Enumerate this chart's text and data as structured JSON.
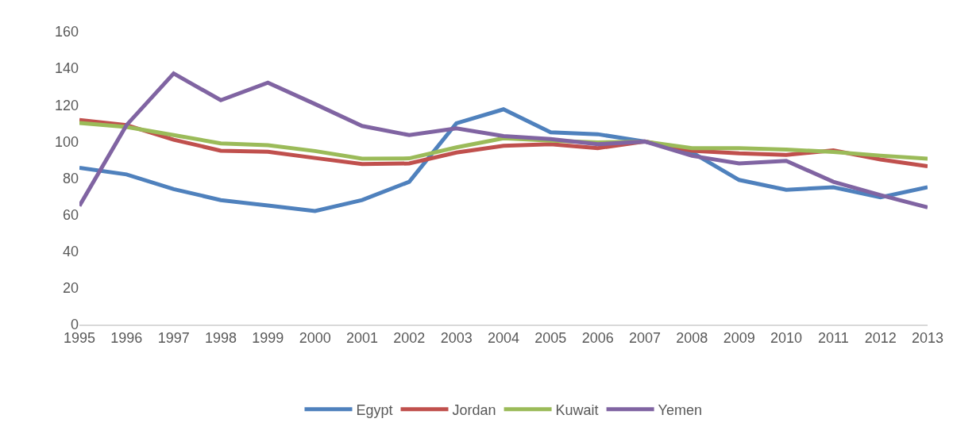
{
  "chart_data": {
    "type": "line",
    "categories": [
      "1995",
      "1996",
      "1997",
      "1998",
      "1999",
      "2000",
      "2001",
      "2002",
      "2003",
      "2004",
      "2005",
      "2006",
      "2007",
      "2008",
      "2009",
      "2010",
      "2011",
      "2012",
      "2013"
    ],
    "series": [
      {
        "name": "Egypt",
        "color": "#4f81bd",
        "values": [
          85.6,
          82,
          74,
          68,
          65,
          62,
          68,
          78,
          110,
          117.6,
          105,
          104,
          100,
          94,
          79,
          73.6,
          75,
          69.5,
          75
        ]
      },
      {
        "name": "Jordan",
        "color": "#c0504d",
        "values": [
          111.8,
          109,
          101,
          95,
          94.4,
          91,
          87.7,
          88,
          94,
          97.7,
          98.5,
          96.4,
          100,
          95,
          93.5,
          92.7,
          95.2,
          90.2,
          86.5
        ]
      },
      {
        "name": "Kuwait",
        "color": "#9bbb59",
        "values": [
          110.1,
          108,
          103.5,
          99,
          98,
          94.8,
          90.6,
          90.8,
          96.8,
          101.8,
          100.5,
          99.5,
          100,
          96.4,
          96.4,
          95.6,
          94.3,
          92.3,
          90.6
        ]
      },
      {
        "name": "Yemen",
        "color": "#8064a2",
        "values": [
          64.8,
          109,
          137.2,
          122.6,
          132.2,
          120.5,
          108.5,
          103.5,
          107.2,
          103,
          101.4,
          98.5,
          100,
          92.2,
          88,
          89.4,
          78,
          70.7,
          64
        ]
      }
    ],
    "ylim": [
      0,
      160
    ],
    "yticks": [
      0,
      20,
      40,
      60,
      80,
      100,
      120,
      140,
      160
    ],
    "grid": false,
    "legend": "bottom",
    "marker": "none",
    "line_style": "solid"
  }
}
